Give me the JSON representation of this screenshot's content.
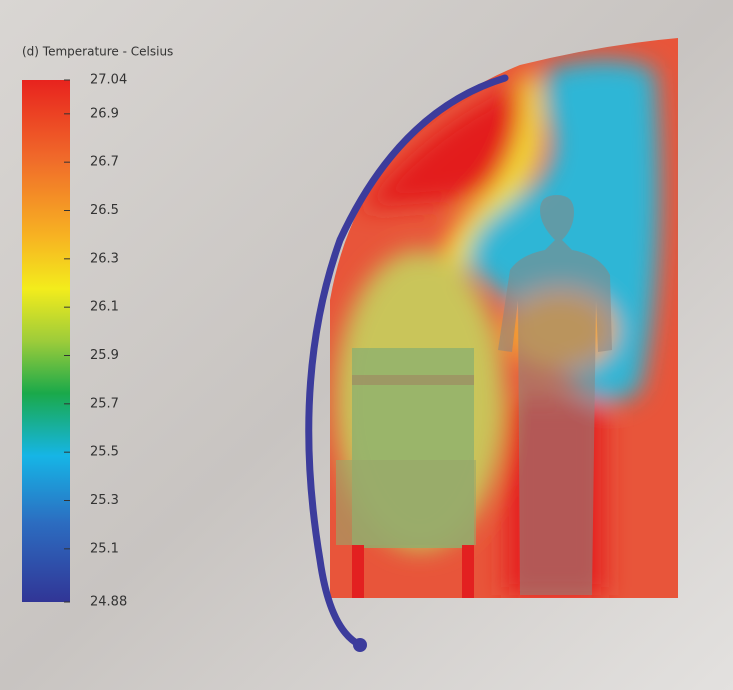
{
  "chart_data": {
    "type": "colorbar",
    "title": "(d) Temperature - Celsius",
    "ylim": [
      24.88,
      27.04
    ],
    "yticks": [
      24.88,
      25.1,
      25.3,
      25.5,
      25.7,
      25.9,
      26.1,
      26.3,
      26.5,
      26.7,
      26.9,
      27.04
    ]
  }
}
